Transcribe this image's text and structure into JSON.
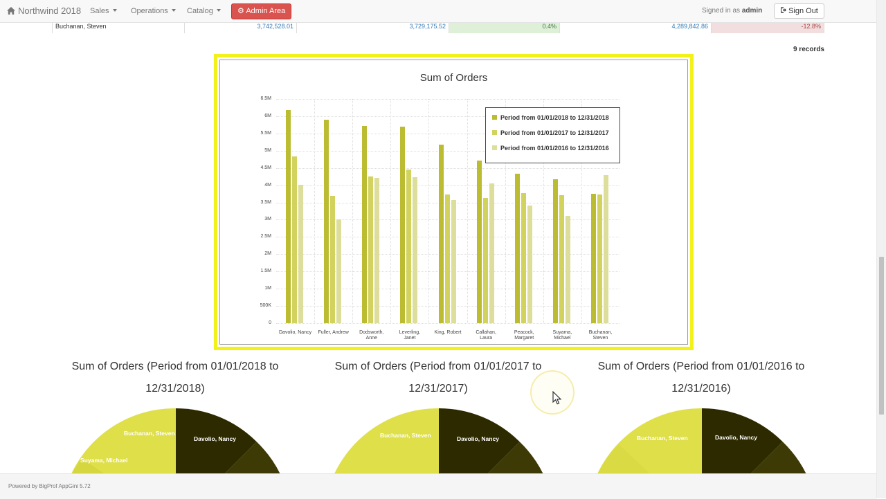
{
  "navbar": {
    "brand": "Northwind 2018",
    "menus": [
      "Sales",
      "Operations",
      "Catalog"
    ],
    "admin_button": "Admin Area",
    "signed_in_prefix": "Signed in as",
    "username": "admin",
    "signout_button": "Sign Out"
  },
  "summary_row": {
    "employee": "Buchanan, Steven",
    "values": [
      "3,742,528.01",
      "3,729,175.52",
      "0.4%",
      "4,289,842.86",
      "-12.8%"
    ]
  },
  "records_label": "9 records",
  "colors": {
    "accent_yellow": "#f2f21a",
    "series": [
      "#bcbc32",
      "#d2d25f",
      "#dede9c"
    ],
    "change_positive_bg": "#dff0d8",
    "change_negative_bg": "#f2dede"
  },
  "chart_data": [
    {
      "type": "bar",
      "title": "Sum of Orders",
      "categories": [
        "Davolio, Nancy",
        "Fuller, Andrew",
        "Dodsworth, Anne",
        "Leverling, Janet",
        "King, Robert",
        "Callahan, Laura",
        "Peacock, Margaret",
        "Suyama, Michael",
        "Buchanan, Steven"
      ],
      "yticks": [
        "0",
        "500K",
        "1M",
        "1.5M",
        "2M",
        "2.5M",
        "3M",
        "3.5M",
        "4M",
        "4.5M",
        "5M",
        "5.5M",
        "6M",
        "6.5M"
      ],
      "ylim": [
        0,
        6500000
      ],
      "grid": true,
      "legend_position": "top-right",
      "series": [
        {
          "name": "Period from 01/01/2018 to 12/31/2018",
          "values": [
            6180000,
            5890000,
            5720000,
            5690000,
            5170000,
            4720000,
            4340000,
            4170000,
            3742528
          ]
        },
        {
          "name": "Period from 01/01/2017 to 12/31/2017",
          "values": [
            4830000,
            3700000,
            4250000,
            4450000,
            3740000,
            3640000,
            3780000,
            3710000,
            3729176
          ]
        },
        {
          "name": "Period from 01/01/2016 to 12/31/2016",
          "values": [
            4020000,
            3000000,
            4220000,
            4230000,
            3570000,
            4060000,
            3410000,
            3100000,
            4289843
          ]
        }
      ]
    },
    {
      "type": "pie",
      "title": "Sum of Orders (Period from 01/01/2018 to 12/31/2018)",
      "visible_labels": [
        "Davolio, Nancy",
        "Buchanan, Steven",
        "Suyama, Michael"
      ]
    },
    {
      "type": "pie",
      "title": "Sum of Orders (Period from 01/01/2017 to 12/31/2017)",
      "visible_labels": [
        "Davolio, Nancy",
        "Buchanan, Steven"
      ]
    },
    {
      "type": "pie",
      "title": "Sum of Orders (Period from 01/01/2016 to 12/31/2016)",
      "visible_labels": [
        "Davolio, Nancy",
        "Buchanan, Steven"
      ]
    }
  ],
  "footer": {
    "text": "Powered by BigProf AppGini 5.72"
  }
}
